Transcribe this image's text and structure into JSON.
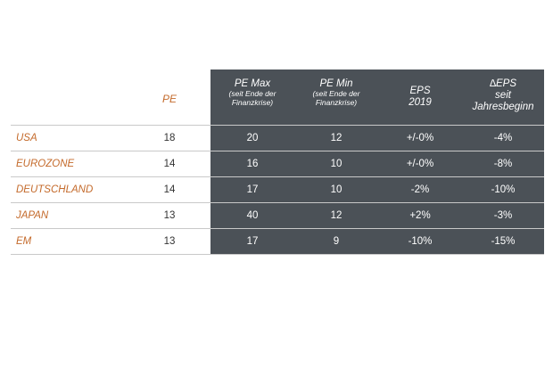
{
  "header": {
    "pe": "PE",
    "pe_max": "PE Max",
    "pe_max_sub1": "(seit Ende der",
    "pe_max_sub2": "Finanzkrise)",
    "pe_min": "PE Min",
    "pe_min_sub1": "(seit Ende der",
    "pe_min_sub2": "Finanzkrise)",
    "eps_line1": "EPS",
    "eps_line2": "2019",
    "deps_line1": "∆EPS",
    "deps_line2": "seit",
    "deps_line3": "Jahresbeginn"
  },
  "rows": [
    {
      "region": "USA",
      "pe": "18",
      "pe_max": "20",
      "pe_min": "12",
      "eps": "+/-0%",
      "deps": "-4%"
    },
    {
      "region": "EUROZONE",
      "pe": "14",
      "pe_max": "16",
      "pe_min": "10",
      "eps": "+/-0%",
      "deps": "-8%"
    },
    {
      "region": "DEUTSCHLAND",
      "pe": "14",
      "pe_max": "17",
      "pe_min": "10",
      "eps": "-2%",
      "deps": "-10%"
    },
    {
      "region": "JAPAN",
      "pe": "13",
      "pe_max": "40",
      "pe_min": "12",
      "eps": "+2%",
      "deps": "-3%"
    },
    {
      "region": "EM",
      "pe": "13",
      "pe_max": "17",
      "pe_min": "9",
      "eps": "-10%",
      "deps": "-15%"
    }
  ],
  "colors": {
    "accent": "#c46a2b",
    "table_dark": "#4b5157",
    "text_white": "#ffffff"
  }
}
